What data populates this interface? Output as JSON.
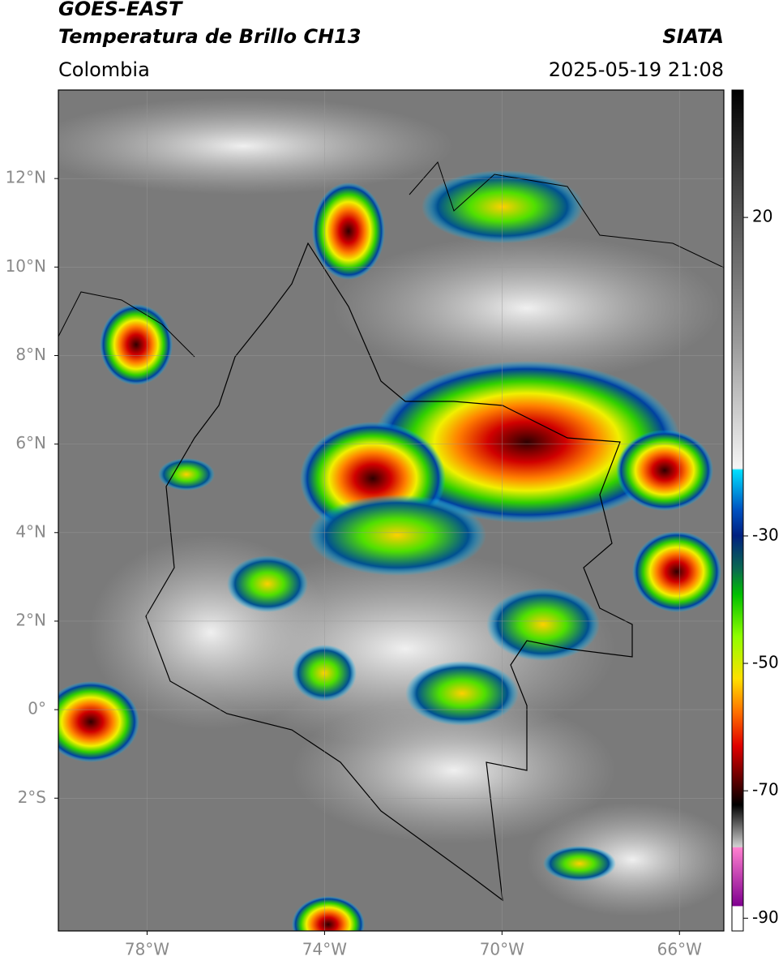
{
  "header": {
    "title": "GOES-EAST",
    "subtitle": "Temperatura de Brillo CH13",
    "source": "SIATA",
    "region": "Colombia",
    "timestamp": "2025-05-19 21:08"
  },
  "map": {
    "xlim": [
      -80,
      -65
    ],
    "ylim": [
      -5,
      14
    ],
    "xticks": [
      {
        "value": -78,
        "label": "78°W"
      },
      {
        "value": -74,
        "label": "74°W"
      },
      {
        "value": -70,
        "label": "70°W"
      },
      {
        "value": -66,
        "label": "66°W"
      }
    ],
    "yticks": [
      {
        "value": 12,
        "label": "12°N"
      },
      {
        "value": 10,
        "label": "10°N"
      },
      {
        "value": 8,
        "label": "8°N"
      },
      {
        "value": 6,
        "label": "6°N"
      },
      {
        "value": 4,
        "label": "4°N"
      },
      {
        "value": 2,
        "label": "2°N"
      },
      {
        "value": 0,
        "label": "0°"
      },
      {
        "value": -2,
        "label": "2°S"
      }
    ],
    "grid": true
  },
  "colorbar": {
    "lim": [
      -92,
      40
    ],
    "ticks": [
      20,
      -30,
      -50,
      -70,
      -90
    ]
  }
}
